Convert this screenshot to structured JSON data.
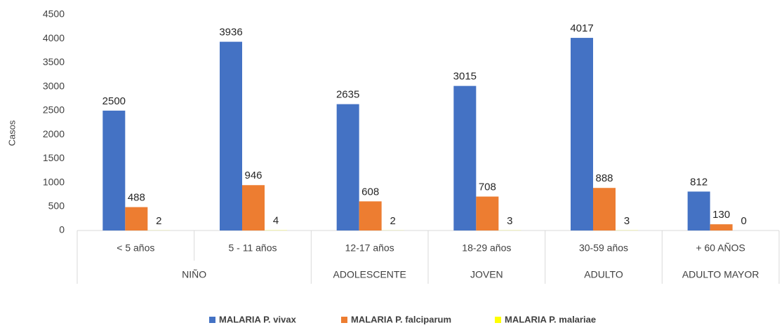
{
  "chart_data": {
    "type": "bar",
    "y_label": "Casos",
    "categories": [
      "< 5 años",
      "5 - 11 años",
      "12-17 años",
      "18-29 años",
      "30-59 años",
      "+ 60 AÑOS"
    ],
    "category_groups": [
      {
        "label": "NIÑO",
        "span": 2
      },
      {
        "label": "ADOLESCENTE",
        "span": 1
      },
      {
        "label": "JOVEN",
        "span": 1
      },
      {
        "label": "ADULTO",
        "span": 1
      },
      {
        "label": "ADULTO MAYOR",
        "span": 1
      }
    ],
    "series": [
      {
        "name": "MALARIA P. vivax",
        "color": "#4472c4",
        "values": [
          2500,
          3936,
          2635,
          3015,
          4017,
          812
        ]
      },
      {
        "name": "MALARIA P. falciparum",
        "color": "#ed7d31",
        "values": [
          488,
          946,
          608,
          708,
          888,
          130
        ]
      },
      {
        "name": "MALARIA P. malariae",
        "color": "#ffff00",
        "values": [
          2,
          4,
          2,
          3,
          3,
          0
        ]
      }
    ],
    "ylim": [
      0,
      4500
    ],
    "yticks": [
      0,
      500,
      1000,
      1500,
      2000,
      2500,
      3000,
      3500,
      4000,
      4500
    ],
    "grid": false,
    "legend": "bottom"
  }
}
